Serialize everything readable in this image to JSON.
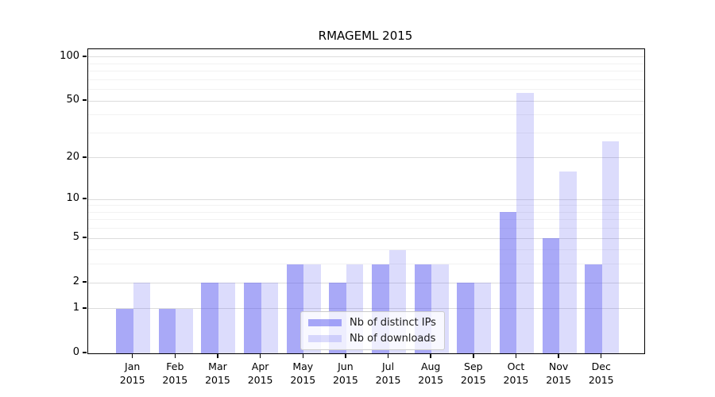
{
  "title": "RMAGEML 2015",
  "legend": {
    "items": [
      {
        "label": "Nb of distinct IPs"
      },
      {
        "label": "Nb of downloads"
      }
    ]
  },
  "chart_data": {
    "type": "bar",
    "title": "RMAGEML 2015",
    "categories": [
      "Jan 2015",
      "Feb 2015",
      "Mar 2015",
      "Apr 2015",
      "May 2015",
      "Jun 2015",
      "Jul 2015",
      "Aug 2015",
      "Sep 2015",
      "Oct 2015",
      "Nov 2015",
      "Dec 2015"
    ],
    "series": [
      {
        "name": "Nb of distinct IPs",
        "values": [
          1,
          1,
          2,
          2,
          3,
          2,
          3,
          3,
          2,
          8,
          5,
          3
        ],
        "color_hex": "#a9a9f6",
        "color_rgba": "rgba(90,90,240,0.52)"
      },
      {
        "name": "Nb of downloads",
        "values": [
          2,
          1,
          2,
          2,
          3,
          3,
          4,
          3,
          2,
          57,
          16,
          26
        ],
        "color_hex": "#dcdcfb",
        "color_rgba": "rgba(90,90,240,0.21)"
      }
    ],
    "xlabel": "",
    "ylabel": "",
    "yscale": "log1p",
    "ylim": [
      0,
      113
    ],
    "yticks": [
      0,
      1,
      2,
      5,
      10,
      20,
      50,
      100
    ],
    "yticks_minor": [
      3,
      4,
      6,
      7,
      8,
      9,
      30,
      40,
      60,
      70,
      80,
      90
    ],
    "grid": true,
    "legend_position": "lower center",
    "colors": {
      "grid_major": "#dcdcdc",
      "grid_minor": "#f2f2f2",
      "axis": "#000000",
      "background": "#ffffff"
    }
  }
}
